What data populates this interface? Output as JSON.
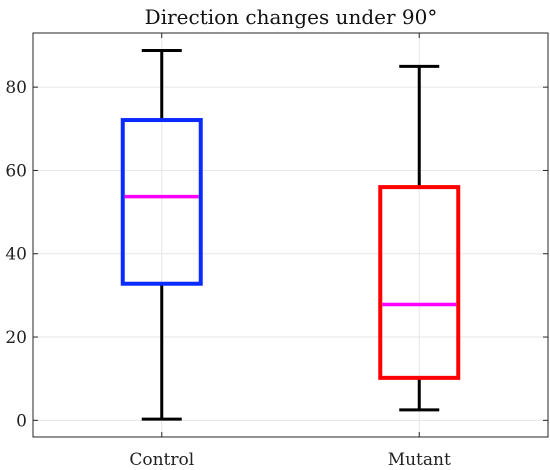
{
  "chart_data": {
    "type": "box",
    "title": "Direction changes under 90°",
    "xlabel": "",
    "ylabel": "",
    "categories": [
      "Control",
      "Mutant"
    ],
    "ylim": [
      -4,
      93
    ],
    "yticks": [
      0,
      20,
      40,
      60,
      80
    ],
    "grid": true,
    "legend": "none",
    "series": [
      {
        "category": "Control",
        "whisker_low": 0.3,
        "q1": 32.8,
        "median": 53.7,
        "q3": 72.1,
        "whisker_high": 88.8,
        "color": "#0a2bff"
      },
      {
        "category": "Mutant",
        "whisker_low": 2.5,
        "q1": 10.2,
        "median": 27.8,
        "q3": 56.0,
        "whisker_high": 85.0,
        "color": "#ff0000"
      }
    ],
    "median_color": "#ff00ff",
    "whisker_color": "#000000"
  }
}
